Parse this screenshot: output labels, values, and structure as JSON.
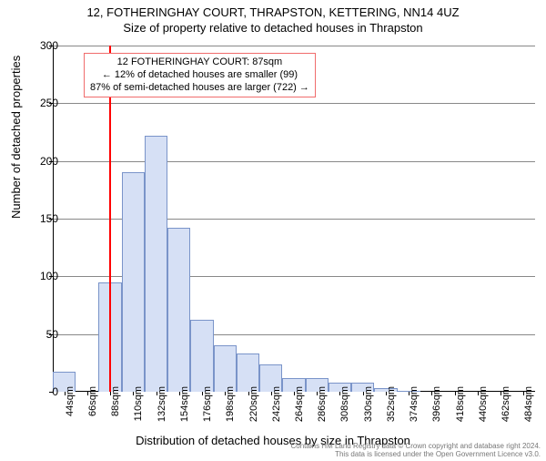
{
  "header": {
    "address": "12, FOTHERINGHAY COURT, THRAPSTON, KETTERING, NN14 4UZ",
    "subtitle": "Size of property relative to detached houses in Thrapston"
  },
  "callout": {
    "line1": "12 FOTHERINGHAY COURT: 87sqm",
    "line2": "← 12% of detached houses are smaller (99)",
    "line3": "87% of semi-detached houses are larger (722) →"
  },
  "chart": {
    "type": "bar",
    "bar_fill": "#d6e0f5",
    "bar_stroke": "#7a94c9",
    "grid_color": "#888888",
    "marker_color": "#ff0000",
    "marker_x_sqm": 87,
    "background_color": "#ffffff",
    "ylim": [
      0,
      300
    ],
    "ytick_step": 50,
    "yticks": [
      0,
      50,
      100,
      150,
      200,
      250,
      300
    ],
    "ylabel": "Number of detached properties",
    "xlabel": "Distribution of detached houses by size in Thrapston",
    "x_bin_start": 33,
    "x_bin_width": 22,
    "x_tick_labels": [
      "44sqm",
      "66sqm",
      "88sqm",
      "110sqm",
      "132sqm",
      "154sqm",
      "176sqm",
      "198sqm",
      "220sqm",
      "242sqm",
      "264sqm",
      "286sqm",
      "308sqm",
      "330sqm",
      "352sqm",
      "374sqm",
      "396sqm",
      "418sqm",
      "440sqm",
      "462sqm",
      "484sqm"
    ],
    "values": [
      17,
      0,
      95,
      190,
      222,
      142,
      62,
      40,
      33,
      24,
      12,
      12,
      8,
      8,
      3,
      1,
      0,
      0,
      0,
      0,
      0
    ],
    "label_fontsize": 13,
    "tick_fontsize": 12,
    "bar_width_ratio": 1.0
  },
  "attribution": {
    "line1": "Contains HM Land Registry data © Crown copyright and database right 2024.",
    "line2": "This data is licensed under the Open Government Licence v3.0."
  }
}
